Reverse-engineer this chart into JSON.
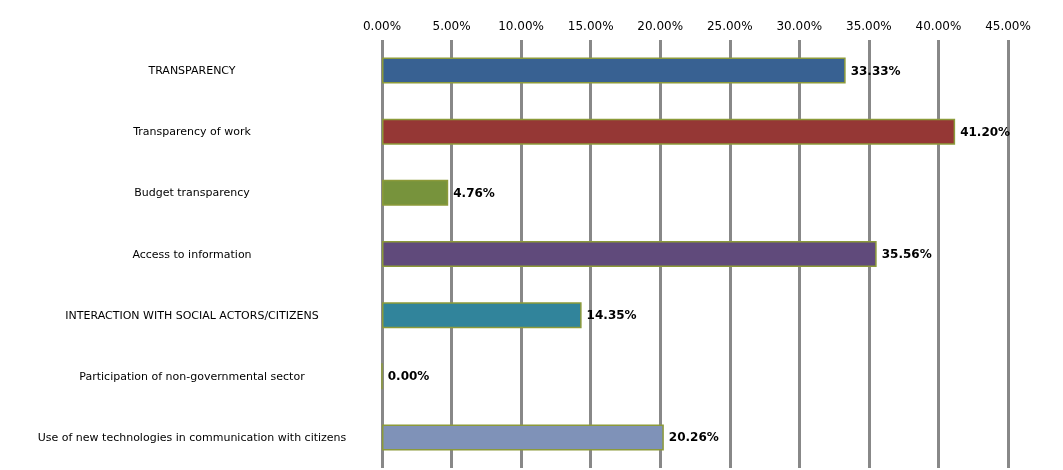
{
  "chart_data": {
    "type": "bar",
    "orientation": "horizontal",
    "categories": [
      "TRANSPARENCY",
      "Transparency of work",
      "Budget transparency",
      "Access to information",
      "INTERACTION WITH SOCIAL ACTORS/CITIZENS",
      "Participation of non-governmental sector",
      "Use of new technologies in communication with citizens"
    ],
    "values": [
      33.33,
      41.2,
      4.76,
      35.56,
      14.35,
      0,
      20.26
    ],
    "colors": [
      "#386192",
      "#953735",
      "#77933c",
      "#604a7b",
      "#31849b",
      "#8c9a3a",
      "#7f92b8"
    ],
    "value_labels": [
      "33.33%",
      "41.20%",
      "4.76%",
      "35.56%",
      "14.35%",
      "0.00%",
      "20.26%"
    ],
    "xlim": [
      0,
      45
    ],
    "xticks": [
      {
        "value": 0,
        "label": "0.00%"
      },
      {
        "value": 5,
        "label": "5.00%"
      },
      {
        "value": 10,
        "label": "10.00%"
      },
      {
        "value": 15,
        "label": "15.00%"
      },
      {
        "value": 20,
        "label": "20.00%"
      },
      {
        "value": 25,
        "label": "25.00%"
      },
      {
        "value": 30,
        "label": "30.00%"
      },
      {
        "value": 35,
        "label": "35.00%"
      },
      {
        "value": 40,
        "label": "40.00%"
      },
      {
        "value": 45,
        "label": "45.00%"
      }
    ],
    "grid": "x"
  }
}
